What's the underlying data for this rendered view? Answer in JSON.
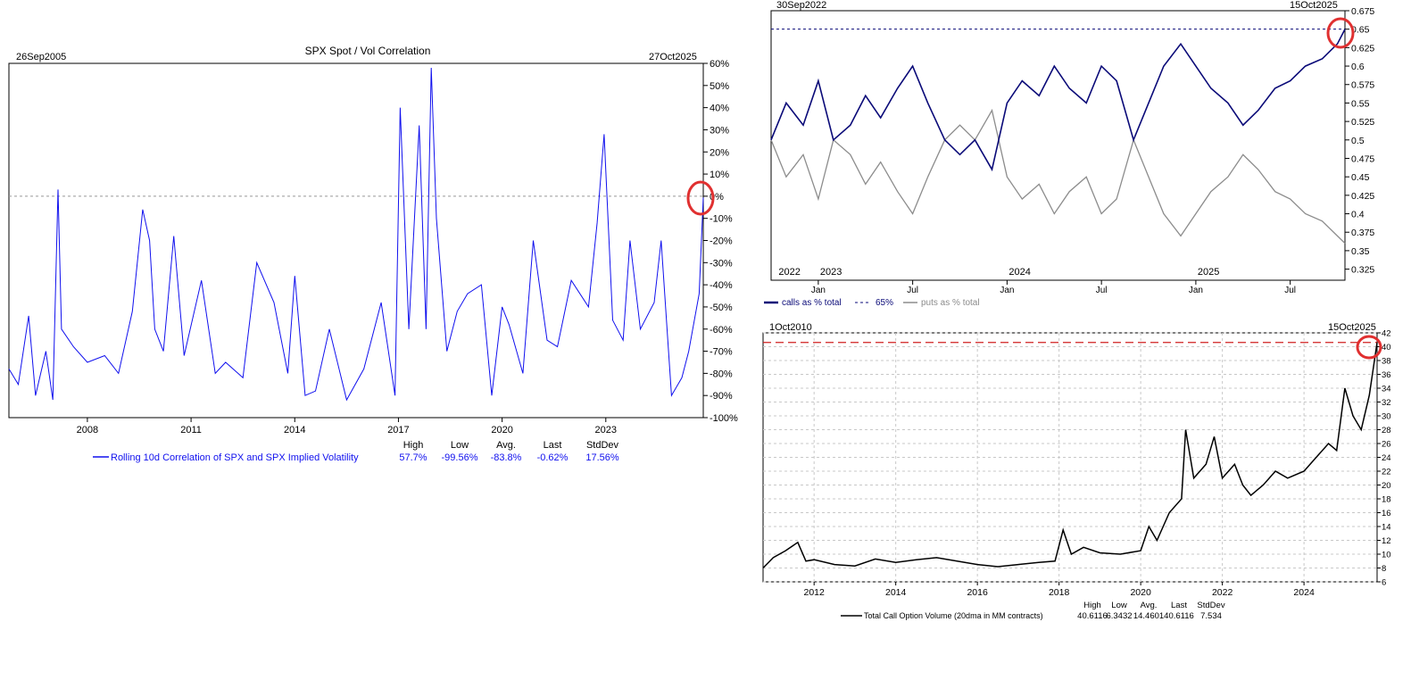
{
  "chart_data": [
    {
      "id": "spot_vol",
      "type": "line",
      "title": "SPX Spot / Vol Correlation",
      "start_label": "26Sep2005",
      "end_label": "27Oct2025",
      "x_range": [
        2005.73,
        2025.82
      ],
      "ylim": [
        -100,
        60
      ],
      "y_ticks": [
        60,
        50,
        40,
        30,
        20,
        10,
        0,
        -10,
        -20,
        -30,
        -40,
        -50,
        -60,
        -70,
        -80,
        -90,
        -100
      ],
      "y_tick_suffix": "%",
      "x_ticks": [
        2008,
        2011,
        2014,
        2017,
        2020,
        2023
      ],
      "reference_line": 0,
      "highlight_circle": "last value near 0%",
      "series": [
        {
          "name": "Rolling 10d Correlation of SPX and SPX Implied Volatility",
          "color": "#1010ee",
          "points": [
            [
              2005.73,
              -78
            ],
            [
              2006.0,
              -85
            ],
            [
              2006.3,
              -54
            ],
            [
              2006.5,
              -90
            ],
            [
              2006.8,
              -70
            ],
            [
              2007.0,
              -92
            ],
            [
              2007.15,
              3
            ],
            [
              2007.25,
              -60
            ],
            [
              2007.6,
              -68
            ],
            [
              2008.0,
              -75
            ],
            [
              2008.5,
              -72
            ],
            [
              2008.9,
              -80
            ],
            [
              2009.3,
              -52
            ],
            [
              2009.6,
              -6
            ],
            [
              2009.8,
              -20
            ],
            [
              2009.95,
              -60
            ],
            [
              2010.2,
              -70
            ],
            [
              2010.5,
              -18
            ],
            [
              2010.8,
              -72
            ],
            [
              2011.3,
              -38
            ],
            [
              2011.7,
              -80
            ],
            [
              2012.0,
              -75
            ],
            [
              2012.5,
              -82
            ],
            [
              2012.9,
              -30
            ],
            [
              2013.4,
              -48
            ],
            [
              2013.8,
              -80
            ],
            [
              2014.0,
              -36
            ],
            [
              2014.3,
              -90
            ],
            [
              2014.6,
              -88
            ],
            [
              2015.0,
              -60
            ],
            [
              2015.5,
              -92
            ],
            [
              2016.0,
              -78
            ],
            [
              2016.5,
              -48
            ],
            [
              2016.9,
              -90
            ],
            [
              2017.05,
              40
            ],
            [
              2017.3,
              -60
            ],
            [
              2017.6,
              32
            ],
            [
              2017.8,
              -60
            ],
            [
              2017.95,
              58
            ],
            [
              2018.1,
              -10
            ],
            [
              2018.4,
              -70
            ],
            [
              2018.7,
              -52
            ],
            [
              2019.0,
              -44
            ],
            [
              2019.4,
              -40
            ],
            [
              2019.7,
              -90
            ],
            [
              2020.0,
              -50
            ],
            [
              2020.2,
              -58
            ],
            [
              2020.6,
              -80
            ],
            [
              2020.9,
              -20
            ],
            [
              2021.3,
              -65
            ],
            [
              2021.6,
              -68
            ],
            [
              2022.0,
              -38
            ],
            [
              2022.5,
              -50
            ],
            [
              2022.75,
              -12
            ],
            [
              2022.95,
              28
            ],
            [
              2023.2,
              -56
            ],
            [
              2023.5,
              -65
            ],
            [
              2023.7,
              -20
            ],
            [
              2024.0,
              -60
            ],
            [
              2024.4,
              -48
            ],
            [
              2024.6,
              -20
            ],
            [
              2024.9,
              -90
            ],
            [
              2025.2,
              -82
            ],
            [
              2025.4,
              -70
            ],
            [
              2025.7,
              -44
            ],
            [
              2025.82,
              -0.62
            ]
          ]
        }
      ],
      "stats": {
        "headers": [
          "High",
          "Low",
          "Avg.",
          "Last",
          "StdDev"
        ],
        "values": [
          "57.7%",
          "-99.56%",
          "-83.8%",
          "-0.62%",
          "17.56%"
        ]
      }
    },
    {
      "id": "call_put_share",
      "type": "line",
      "start_label": "30Sep2022",
      "end_label": "15Oct2025",
      "x_range": [
        2022.75,
        2025.79
      ],
      "ylim": [
        0.31,
        0.675
      ],
      "y_ticks": [
        0.675,
        0.65,
        0.625,
        0.6,
        0.575,
        0.55,
        0.525,
        0.5,
        0.475,
        0.45,
        0.425,
        0.4,
        0.375,
        0.35,
        0.325
      ],
      "x_ticks": [
        {
          "value": 2023.0,
          "label": "Jan"
        },
        {
          "value": 2023.5,
          "label": "Jul"
        },
        {
          "value": 2024.0,
          "label": "Jan"
        },
        {
          "value": 2024.5,
          "label": "Jul"
        },
        {
          "value": 2025.0,
          "label": "Jan"
        },
        {
          "value": 2025.5,
          "label": "Jul"
        }
      ],
      "year_labels": [
        {
          "value": 2022.78,
          "label": "2022"
        },
        {
          "value": 2023.0,
          "label": "2023"
        },
        {
          "value": 2024.0,
          "label": "2024"
        },
        {
          "value": 2025.0,
          "label": "2025"
        }
      ],
      "highlight_circle": "calls share near 0.65",
      "series": [
        {
          "name": "calls as % total",
          "color": "#0a0a78",
          "points": [
            [
              2022.75,
              0.5
            ],
            [
              2022.83,
              0.55
            ],
            [
              2022.92,
              0.52
            ],
            [
              2023.0,
              0.58
            ],
            [
              2023.08,
              0.5
            ],
            [
              2023.17,
              0.52
            ],
            [
              2023.25,
              0.56
            ],
            [
              2023.33,
              0.53
            ],
            [
              2023.42,
              0.57
            ],
            [
              2023.5,
              0.6
            ],
            [
              2023.58,
              0.55
            ],
            [
              2023.67,
              0.5
            ],
            [
              2023.75,
              0.48
            ],
            [
              2023.83,
              0.5
            ],
            [
              2023.92,
              0.46
            ],
            [
              2024.0,
              0.55
            ],
            [
              2024.08,
              0.58
            ],
            [
              2024.17,
              0.56
            ],
            [
              2024.25,
              0.6
            ],
            [
              2024.33,
              0.57
            ],
            [
              2024.42,
              0.55
            ],
            [
              2024.5,
              0.6
            ],
            [
              2024.58,
              0.58
            ],
            [
              2024.67,
              0.5
            ],
            [
              2024.75,
              0.55
            ],
            [
              2024.83,
              0.6
            ],
            [
              2024.92,
              0.63
            ],
            [
              2025.0,
              0.6
            ],
            [
              2025.08,
              0.57
            ],
            [
              2025.17,
              0.55
            ],
            [
              2025.25,
              0.52
            ],
            [
              2025.33,
              0.54
            ],
            [
              2025.42,
              0.57
            ],
            [
              2025.5,
              0.58
            ],
            [
              2025.58,
              0.6
            ],
            [
              2025.67,
              0.61
            ],
            [
              2025.75,
              0.63
            ],
            [
              2025.79,
              0.65
            ]
          ]
        },
        {
          "name": "65%",
          "color": "#0a0a78",
          "dashed": true,
          "value": 0.65
        },
        {
          "name": "puts as % total",
          "color": "#8c8c8c",
          "points": [
            [
              2022.75,
              0.5
            ],
            [
              2022.83,
              0.45
            ],
            [
              2022.92,
              0.48
            ],
            [
              2023.0,
              0.42
            ],
            [
              2023.08,
              0.5
            ],
            [
              2023.17,
              0.48
            ],
            [
              2023.25,
              0.44
            ],
            [
              2023.33,
              0.47
            ],
            [
              2023.42,
              0.43
            ],
            [
              2023.5,
              0.4
            ],
            [
              2023.58,
              0.45
            ],
            [
              2023.67,
              0.5
            ],
            [
              2023.75,
              0.52
            ],
            [
              2023.83,
              0.5
            ],
            [
              2023.92,
              0.54
            ],
            [
              2024.0,
              0.45
            ],
            [
              2024.08,
              0.42
            ],
            [
              2024.17,
              0.44
            ],
            [
              2024.25,
              0.4
            ],
            [
              2024.33,
              0.43
            ],
            [
              2024.42,
              0.45
            ],
            [
              2024.5,
              0.4
            ],
            [
              2024.58,
              0.42
            ],
            [
              2024.67,
              0.5
            ],
            [
              2024.75,
              0.45
            ],
            [
              2024.83,
              0.4
            ],
            [
              2024.92,
              0.37
            ],
            [
              2025.0,
              0.4
            ],
            [
              2025.08,
              0.43
            ],
            [
              2025.17,
              0.45
            ],
            [
              2025.25,
              0.48
            ],
            [
              2025.33,
              0.46
            ],
            [
              2025.42,
              0.43
            ],
            [
              2025.5,
              0.42
            ],
            [
              2025.58,
              0.4
            ],
            [
              2025.67,
              0.39
            ],
            [
              2025.75,
              0.37
            ],
            [
              2025.79,
              0.36
            ]
          ]
        }
      ]
    },
    {
      "id": "call_volume",
      "type": "line",
      "start_label": "1Oct2010",
      "end_label": "15Oct2025",
      "x_range": [
        2010.75,
        2025.79
      ],
      "ylim": [
        6,
        42
      ],
      "y_ticks": [
        42,
        40,
        38,
        36,
        34,
        32,
        30,
        28,
        26,
        24,
        22,
        20,
        18,
        16,
        14,
        12,
        10,
        8,
        6
      ],
      "x_ticks": [
        2012,
        2014,
        2016,
        2018,
        2020,
        2022,
        2024
      ],
      "reference_line": 40.6116,
      "highlight_circle": "last value at high",
      "series": [
        {
          "name": "Total Call Option Volume (20dma in MM contracts)",
          "color": "#000000",
          "points": [
            [
              2010.75,
              8
            ],
            [
              2011.0,
              9.5
            ],
            [
              2011.3,
              10.5
            ],
            [
              2011.6,
              11.7
            ],
            [
              2011.8,
              9
            ],
            [
              2012.0,
              9.2
            ],
            [
              2012.5,
              8.5
            ],
            [
              2013.0,
              8.3
            ],
            [
              2013.5,
              9.3
            ],
            [
              2014.0,
              8.8
            ],
            [
              2014.5,
              9.2
            ],
            [
              2015.0,
              9.5
            ],
            [
              2015.5,
              9
            ],
            [
              2016.0,
              8.5
            ],
            [
              2016.5,
              8.2
            ],
            [
              2017.0,
              8.5
            ],
            [
              2017.5,
              8.8
            ],
            [
              2017.9,
              9
            ],
            [
              2018.1,
              13.5
            ],
            [
              2018.3,
              10
            ],
            [
              2018.6,
              11
            ],
            [
              2019.0,
              10.2
            ],
            [
              2019.5,
              10
            ],
            [
              2020.0,
              10.5
            ],
            [
              2020.2,
              14
            ],
            [
              2020.4,
              12
            ],
            [
              2020.7,
              16
            ],
            [
              2021.0,
              18
            ],
            [
              2021.1,
              28
            ],
            [
              2021.3,
              21
            ],
            [
              2021.6,
              23
            ],
            [
              2021.8,
              27
            ],
            [
              2022.0,
              21
            ],
            [
              2022.3,
              23
            ],
            [
              2022.5,
              20
            ],
            [
              2022.7,
              18.5
            ],
            [
              2023.0,
              20
            ],
            [
              2023.3,
              22
            ],
            [
              2023.6,
              21
            ],
            [
              2024.0,
              22
            ],
            [
              2024.3,
              24
            ],
            [
              2024.6,
              26
            ],
            [
              2024.8,
              25
            ],
            [
              2025.0,
              34
            ],
            [
              2025.2,
              30
            ],
            [
              2025.4,
              28
            ],
            [
              2025.6,
              33
            ],
            [
              2025.79,
              40.6116
            ]
          ]
        }
      ],
      "stats": {
        "headers": [
          "High",
          "Low",
          "Avg.",
          "Last",
          "StdDev"
        ],
        "values": [
          "40.6116",
          "6.3432",
          "14.4601",
          "40.6116",
          "7.534"
        ]
      }
    }
  ]
}
